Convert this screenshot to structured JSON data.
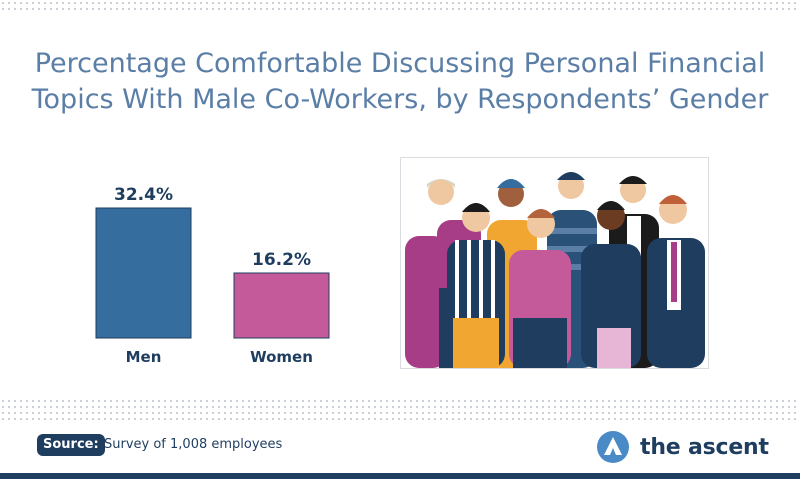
{
  "title_line1": "Percentage Comfortable Discussing Personal Financial",
  "title_line2": "Topics With Male Co-Workers, by Respondents’ Gender",
  "chart_data": {
    "type": "bar",
    "title": "Percentage Comfortable Discussing Personal Financial Topics With Male Co-Workers, by Respondents’ Gender",
    "categories": [
      "Men",
      "Women"
    ],
    "values": [
      32.4,
      16.2
    ],
    "value_labels": [
      "32.4%",
      "16.2%"
    ],
    "unit": "%",
    "colors": [
      "#356d9f",
      "#c45a9a"
    ],
    "ylim": [
      0,
      32.4
    ],
    "grid": false,
    "legend": "none"
  },
  "photo": {
    "icon": "group-of-people-illustration"
  },
  "footer": {
    "source_label": "Source:",
    "source_text": "Survey of 1,008 employees",
    "brand": "the ascent",
    "brand_color": "#1e3d5f",
    "brand_icon": "ascent-logo-icon"
  }
}
